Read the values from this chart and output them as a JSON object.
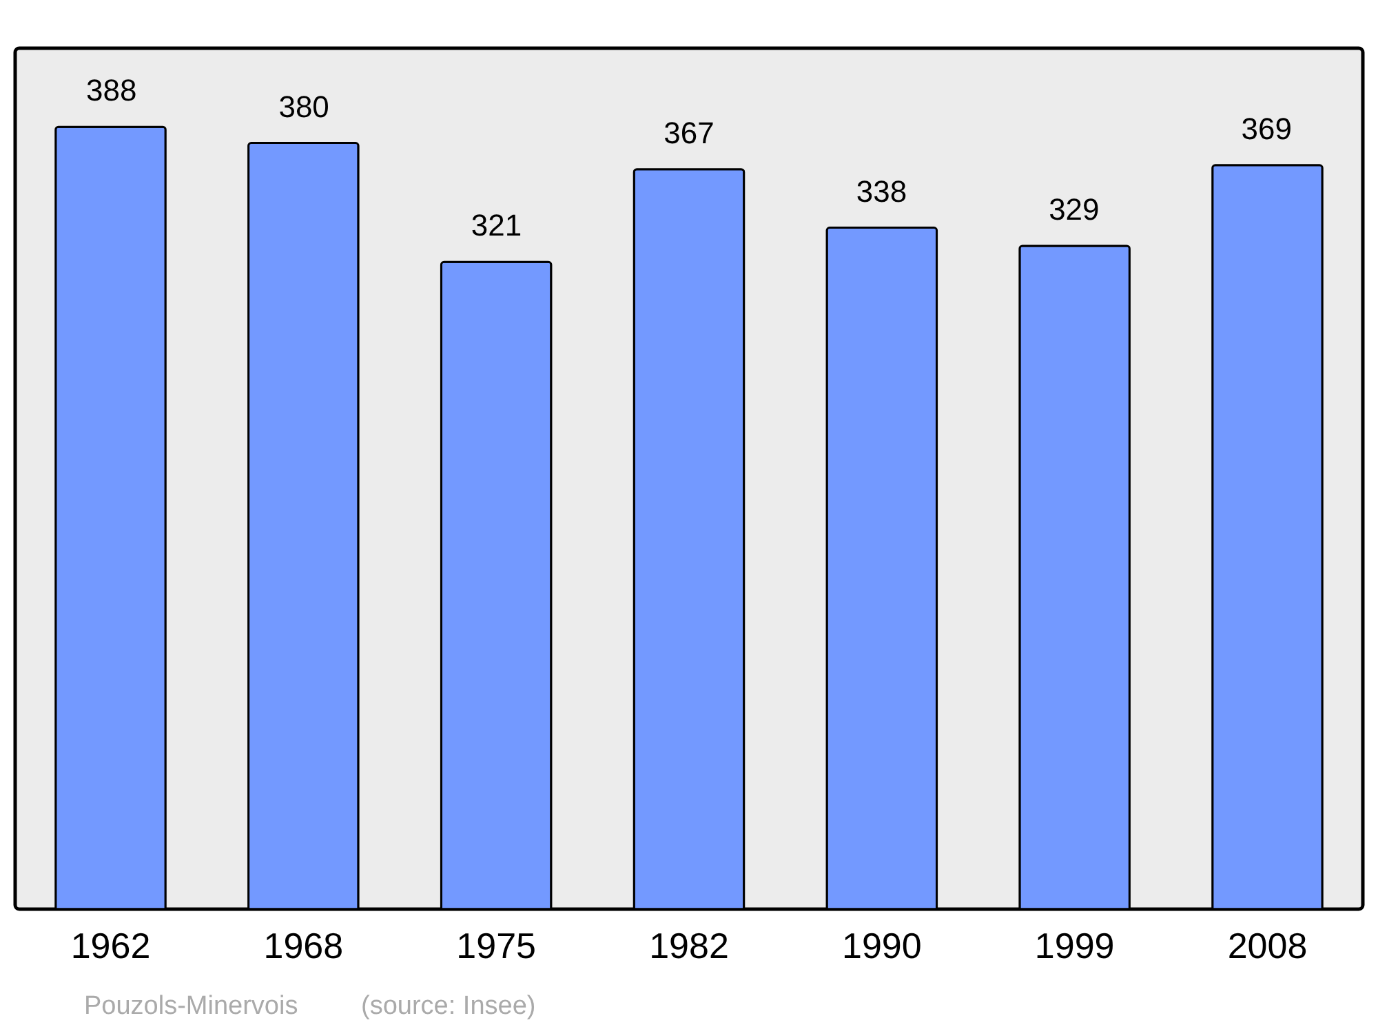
{
  "chart_data": {
    "type": "bar",
    "categories": [
      "1962",
      "1968",
      "1975",
      "1982",
      "1990",
      "1999",
      "2008"
    ],
    "values": [
      388,
      380,
      321,
      367,
      338,
      329,
      369
    ],
    "color": "#7399ff",
    "ylim": [
      0,
      427
    ],
    "data_labels": true,
    "tick_labels": "x",
    "annotations": [
      "Pouzols-Minervois",
      "(source: Insee)"
    ]
  }
}
